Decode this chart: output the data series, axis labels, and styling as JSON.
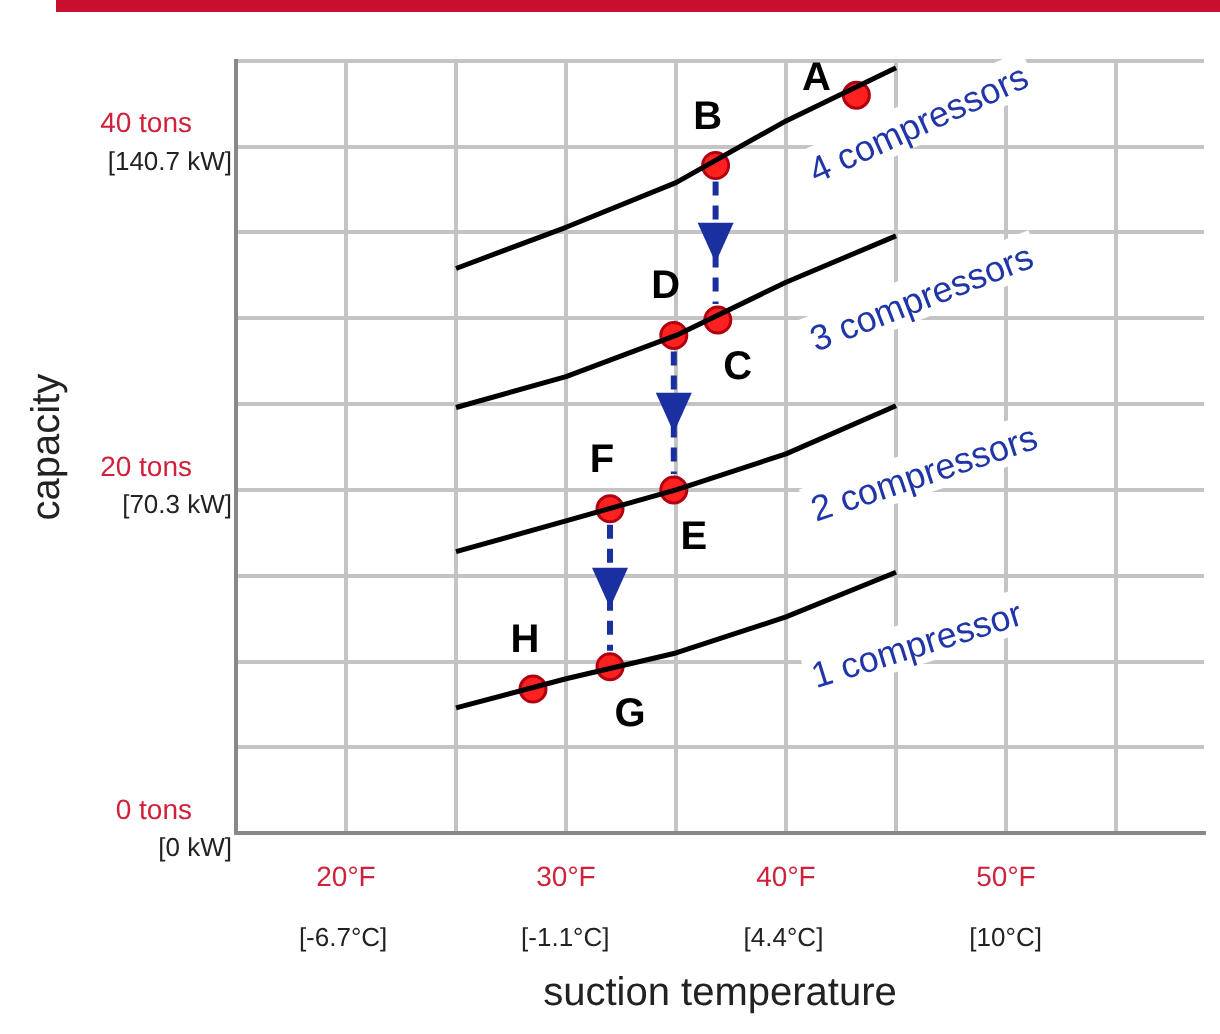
{
  "chart_data": {
    "type": "line",
    "xlabel": "suction temperature",
    "ylabel": "capacity",
    "xlim": [
      15,
      59
    ],
    "ylim": [
      0,
      45
    ],
    "xticks": [
      {
        "value": 15,
        "label": null
      },
      {
        "value": 20,
        "label": "20°F"
      },
      {
        "value": 25,
        "label": null
      },
      {
        "value": 30,
        "label": "30°F"
      },
      {
        "value": 35,
        "label": null
      },
      {
        "value": 40,
        "label": "40°F"
      },
      {
        "value": 45,
        "label": null
      },
      {
        "value": 50,
        "label": "50°F"
      },
      {
        "value": 55,
        "label": null
      }
    ],
    "x2lim": [
      -9.4,
      15
    ],
    "x2ticks": [
      {
        "value": -6.7,
        "label": "[-6.7°C]"
      },
      {
        "value": -1.1,
        "label": "[-1.1°C]"
      },
      {
        "value": 4.4,
        "label": "[4.4°C]"
      },
      {
        "value": 10,
        "label": "[10°C]"
      }
    ],
    "yticks": [
      {
        "value": 0,
        "label": "0 tons"
      },
      {
        "value": 5,
        "label": null
      },
      {
        "value": 10,
        "label": null
      },
      {
        "value": 15,
        "label": null
      },
      {
        "value": 20,
        "label": "20 tons"
      },
      {
        "value": 25,
        "label": null
      },
      {
        "value": 30,
        "label": null
      },
      {
        "value": 35,
        "label": null
      },
      {
        "value": 40,
        "label": "40 tons"
      },
      {
        "value": 45,
        "label": null
      }
    ],
    "y2lim": [
      0,
      158.3
    ],
    "y2ticks": [
      {
        "value": 0,
        "label": "[0 kW]"
      },
      {
        "value": 70.3,
        "label": "[70.3 kW]"
      },
      {
        "value": 140.7,
        "label": "[140.7 kW]"
      }
    ],
    "grid": true,
    "legend": false,
    "line_style": "solid",
    "series": [
      {
        "name": "4 compressors",
        "marker": "none",
        "color": "#000000",
        "x": [
          25,
          30,
          35,
          40,
          45
        ],
        "values": [
          32.9,
          35.3,
          37.9,
          41.5,
          44.6
        ]
      },
      {
        "name": "3 compressors",
        "marker": "none",
        "color": "#000000",
        "x": [
          25,
          30,
          35,
          40,
          45
        ],
        "values": [
          24.8,
          26.6,
          29.0,
          32.1,
          34.8
        ]
      },
      {
        "name": "2 compressors",
        "marker": "none",
        "color": "#000000",
        "x": [
          25,
          30,
          35,
          40,
          45
        ],
        "values": [
          16.4,
          18.2,
          20.0,
          22.1,
          24.9
        ]
      },
      {
        "name": "1 compressor",
        "marker": "none",
        "color": "#000000",
        "x": [
          25,
          30,
          35,
          40,
          45
        ],
        "values": [
          7.3,
          9.0,
          10.5,
          12.6,
          15.2
        ]
      },
      {
        "type": "scatter",
        "marker": "circle",
        "color": "#ff2020",
        "x": [
          43.2,
          36.8,
          36.9,
          34.9,
          34.9,
          32.0,
          32.0,
          28.5
        ],
        "values": [
          43.0,
          38.9,
          29.9,
          29.0,
          20.0,
          18.9,
          9.7,
          8.4
        ]
      }
    ],
    "annotations": [
      {
        "text": "A",
        "x": 43.2,
        "y": 43.0
      },
      {
        "text": "B",
        "x": 36.8,
        "y": 38.9
      },
      {
        "text": "C",
        "x": 36.9,
        "y": 29.9
      },
      {
        "text": "D",
        "x": 34.9,
        "y": 29.0
      },
      {
        "text": "E",
        "x": 34.9,
        "y": 20.0
      },
      {
        "text": "F",
        "x": 32.0,
        "y": 18.9
      },
      {
        "text": "G",
        "x": 32.0,
        "y": 9.7
      },
      {
        "text": "H",
        "x": 28.5,
        "y": 8.4
      }
    ]
  }
}
